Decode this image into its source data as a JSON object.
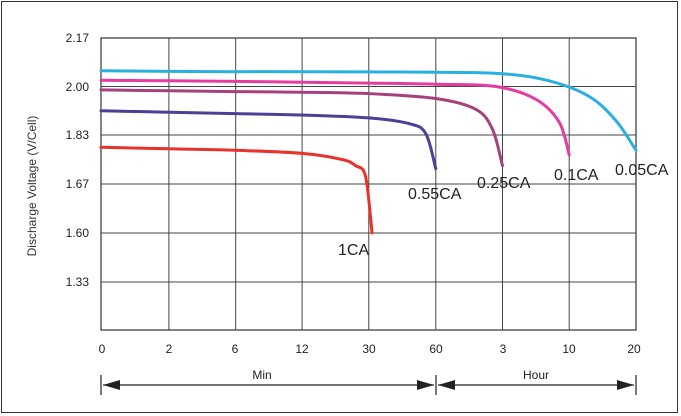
{
  "chart_data": {
    "type": "line",
    "title": "",
    "ylabel": "Discharge Voltage (V/Cell)",
    "xlabel": "",
    "y_ticks": [
      "2.17",
      "2.00",
      "1.83",
      "1.67",
      "1.60",
      "1.33"
    ],
    "x_ticks": [
      "0",
      "2",
      "6",
      "12",
      "30",
      "60",
      "3",
      "10",
      "20"
    ],
    "x_ranges": [
      {
        "label": "Min",
        "from": "0",
        "to": "60"
      },
      {
        "label": "Hour",
        "from": "60",
        "to": "20"
      }
    ],
    "grid": true,
    "series": [
      {
        "name": "1CA",
        "color": "#e8322c",
        "points": [
          [
            0,
            1.79
          ],
          [
            1,
            1.785
          ],
          [
            2,
            1.78
          ],
          [
            3,
            1.77
          ],
          [
            3.6,
            1.75
          ],
          [
            3.8,
            1.73
          ],
          [
            3.95,
            1.695
          ],
          [
            4.05,
            1.6
          ]
        ]
      },
      {
        "name": "0.55CA",
        "color": "#4b3f96",
        "points": [
          [
            0,
            1.915
          ],
          [
            1,
            1.91
          ],
          [
            2,
            1.905
          ],
          [
            3,
            1.9
          ],
          [
            4,
            1.89
          ],
          [
            4.6,
            1.87
          ],
          [
            4.85,
            1.835
          ],
          [
            5,
            1.72
          ]
        ]
      },
      {
        "name": "0.25CA",
        "color": "#a6407e",
        "points": [
          [
            0,
            1.988
          ],
          [
            1,
            1.985
          ],
          [
            2,
            1.982
          ],
          [
            3,
            1.98
          ],
          [
            4,
            1.975
          ],
          [
            5,
            1.958
          ],
          [
            5.6,
            1.92
          ],
          [
            5.85,
            1.85
          ],
          [
            6,
            1.73
          ]
        ]
      },
      {
        "name": "0.1CA",
        "color": "#e63ca0",
        "points": [
          [
            0,
            2.022
          ],
          [
            1,
            2.02
          ],
          [
            2,
            2.018
          ],
          [
            3,
            2.015
          ],
          [
            4,
            2.012
          ],
          [
            5,
            2.008
          ],
          [
            5.9,
            2.0
          ],
          [
            6.5,
            1.955
          ],
          [
            6.85,
            1.875
          ],
          [
            7,
            1.765
          ]
        ]
      },
      {
        "name": "0.05CA",
        "color": "#2ab0e0",
        "points": [
          [
            0,
            2.055
          ],
          [
            1,
            2.053
          ],
          [
            2,
            2.052
          ],
          [
            3,
            2.052
          ],
          [
            4,
            2.051
          ],
          [
            5,
            2.05
          ],
          [
            6,
            2.045
          ],
          [
            6.7,
            2.02
          ],
          [
            7.3,
            1.965
          ],
          [
            7.7,
            1.88
          ],
          [
            8,
            1.78
          ]
        ]
      }
    ]
  }
}
